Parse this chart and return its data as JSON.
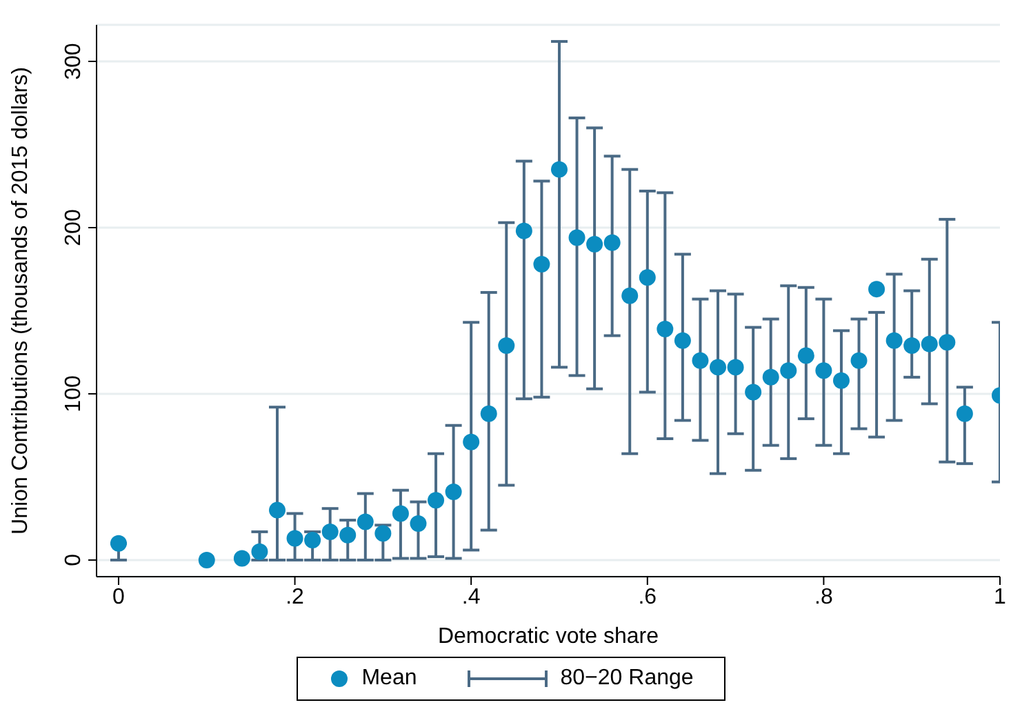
{
  "chart_data": {
    "type": "scatter",
    "xlabel": "Democratic vote share",
    "ylabel": "Union Contributions (thousands of 2015 dollars)",
    "x": [
      0,
      0.1,
      0.14,
      0.16,
      0.18,
      0.2,
      0.22,
      0.24,
      0.26,
      0.28,
      0.3,
      0.32,
      0.34,
      0.36,
      0.38,
      0.4,
      0.42,
      0.44,
      0.46,
      0.48,
      0.5,
      0.52,
      0.54,
      0.56,
      0.58,
      0.6,
      0.62,
      0.64,
      0.66,
      0.68,
      0.7,
      0.72,
      0.74,
      0.76,
      0.78,
      0.8,
      0.82,
      0.84,
      0.86,
      0.88,
      0.9,
      0.92,
      0.94,
      0.96,
      1
    ],
    "series": [
      {
        "name": "Mean",
        "color": "#0b8cc0",
        "marker": "circle",
        "values": [
          10,
          0,
          1,
          5,
          30,
          13,
          12,
          17,
          15,
          23,
          16,
          28,
          22,
          36,
          41,
          71,
          88,
          129,
          198,
          178,
          235,
          194,
          190,
          191,
          159,
          170,
          139,
          132,
          120,
          116,
          116,
          101,
          110,
          114,
          123,
          114,
          108,
          120,
          163,
          132,
          129,
          130,
          131,
          88,
          99
        ],
        "errors": [
          [
            0,
            10
          ],
          null,
          null,
          [
            0,
            17
          ],
          [
            0,
            92
          ],
          [
            0,
            28
          ],
          [
            0,
            17
          ],
          [
            0,
            31
          ],
          [
            0,
            24
          ],
          [
            0,
            40
          ],
          [
            0,
            21
          ],
          [
            1,
            42
          ],
          [
            1,
            35
          ],
          [
            2,
            64
          ],
          [
            1,
            81
          ],
          [
            6,
            143
          ],
          [
            18,
            161
          ],
          [
            45,
            203
          ],
          [
            97,
            240
          ],
          [
            98,
            228
          ],
          [
            116,
            312
          ],
          [
            111,
            266
          ],
          [
            103,
            260
          ],
          [
            135,
            243
          ],
          [
            64,
            235
          ],
          [
            101,
            222
          ],
          [
            73,
            221
          ],
          [
            84,
            184
          ],
          [
            72,
            157
          ],
          [
            52,
            162
          ],
          [
            76,
            160
          ],
          [
            54,
            140
          ],
          [
            69,
            145
          ],
          [
            61,
            165
          ],
          [
            85,
            164
          ],
          [
            69,
            157
          ],
          [
            64,
            138
          ],
          [
            79,
            145
          ],
          [
            74,
            149
          ],
          [
            84,
            172
          ],
          [
            110,
            162
          ],
          [
            94,
            181
          ],
          [
            59,
            205
          ],
          [
            58,
            104
          ],
          [
            47,
            143
          ]
        ]
      },
      {
        "name": "80−20 Range",
        "color": "#4a6a85",
        "marker": "none",
        "values": [
          null,
          null,
          null,
          null,
          null,
          null,
          null,
          null,
          null,
          null,
          null,
          null,
          null,
          null,
          null,
          null,
          null,
          null,
          null,
          null,
          null,
          null,
          null,
          null,
          null,
          null,
          null,
          null,
          null,
          null,
          null,
          null,
          null,
          null,
          null,
          null,
          null,
          null,
          null,
          null,
          null,
          null,
          null,
          null,
          null
        ]
      }
    ],
    "xlim": [
      -0.025,
      1
    ],
    "xticks": [
      0,
      {
        "value": 0.2,
        "label": ".2"
      },
      {
        "value": 0.4,
        "label": ".4"
      },
      {
        "value": 0.6,
        "label": ".6"
      },
      {
        "value": 0.8,
        "label": ".8"
      },
      1
    ],
    "ylim": [
      -10,
      322
    ],
    "yticks": [
      0,
      100,
      200,
      300
    ],
    "grid": "y",
    "legend": "bottom"
  }
}
